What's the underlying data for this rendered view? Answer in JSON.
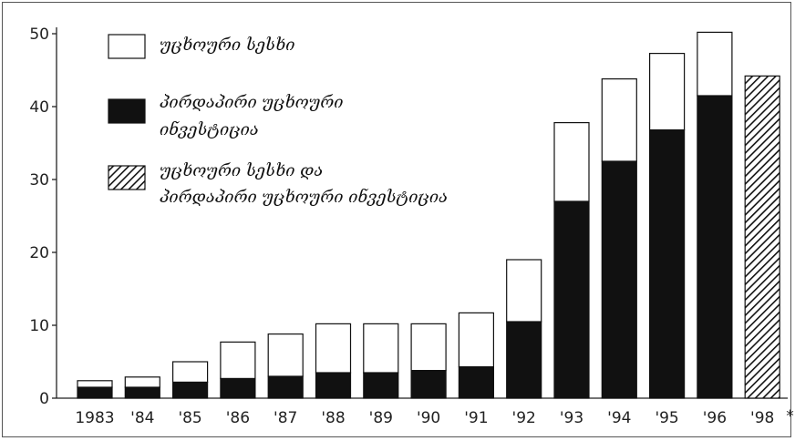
{
  "chart_data": {
    "type": "bar",
    "stacked": true,
    "categories": [
      "1983",
      "'84",
      "'85",
      "'86",
      "'87",
      "'88",
      "'89",
      "'90",
      "'91",
      "'92",
      "'93",
      "'94",
      "'95",
      "'96",
      "'98"
    ],
    "category_suffix": "*",
    "series": [
      {
        "name": "პირდაპირი უცხოური ინვესტიცია",
        "fill": "#111111",
        "values": [
          1.5,
          1.5,
          2.2,
          2.7,
          3.0,
          3.5,
          3.5,
          3.8,
          4.3,
          10.5,
          27.0,
          32.5,
          36.8,
          41.5,
          null
        ]
      },
      {
        "name": "უცხოური სესხი",
        "fill": "#ffffff",
        "values": [
          0.9,
          1.4,
          2.8,
          5.0,
          5.8,
          6.7,
          6.7,
          6.4,
          7.4,
          8.5,
          10.8,
          11.3,
          10.5,
          8.7,
          null
        ]
      },
      {
        "name": "უცხოური სესხი და პირდაპირი უცხოური ინვესტიცია",
        "fill": "hatched",
        "values": [
          null,
          null,
          null,
          null,
          null,
          null,
          null,
          null,
          null,
          null,
          null,
          null,
          null,
          null,
          44.2
        ]
      }
    ],
    "legend": [
      {
        "label": [
          "უცხოური სესხი"
        ],
        "style": "white"
      },
      {
        "label": [
          "პირდაპირი უცხოური",
          "ინვესტიცია"
        ],
        "style": "black"
      },
      {
        "label": [
          "უცხოური სესხი და",
          "პირდაპირი უცხოური ინვესტიცია"
        ],
        "style": "hatched"
      }
    ],
    "legend_position": "top-left",
    "ylim": [
      0,
      50
    ],
    "yticks": [
      0,
      10,
      20,
      30,
      40,
      50
    ],
    "title": "",
    "xlabel": "",
    "ylabel": "",
    "grid": false
  }
}
